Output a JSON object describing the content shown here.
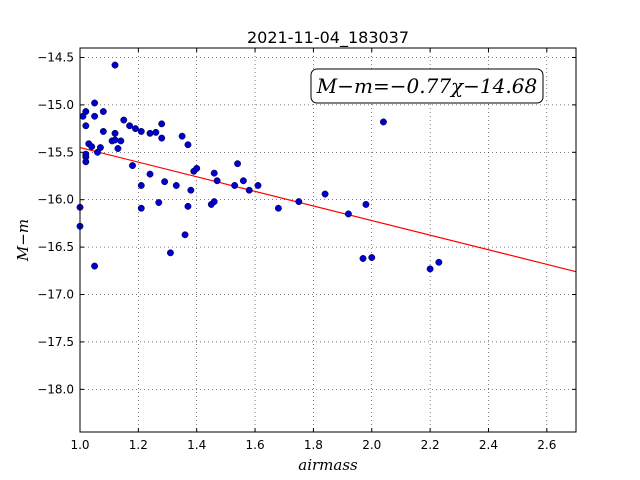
{
  "chart_data": {
    "type": "scatter",
    "title": "2021-11-04_183037",
    "xlabel": "airmass",
    "ylabel": "M−m",
    "xlim": [
      1.0,
      2.7
    ],
    "ylim": [
      -14.4,
      -18.45
    ],
    "y_inverted": true,
    "xticks": [
      1.0,
      1.2,
      1.4,
      1.6,
      1.8,
      2.0,
      2.2,
      2.4,
      2.6
    ],
    "yticks": [
      -14.5,
      -15.0,
      -15.5,
      -16.0,
      -16.5,
      -17.0,
      -17.5,
      -18.0
    ],
    "grid": true,
    "annotation": "M−m=−0.77χ−14.68",
    "fit": {
      "slope": -0.77,
      "intercept": -14.68,
      "color": "#ff0000"
    },
    "point_color": "#0000cc",
    "points": [
      [
        1.0,
        -16.08
      ],
      [
        1.0,
        -16.28
      ],
      [
        1.01,
        -15.12
      ],
      [
        1.02,
        -15.07
      ],
      [
        1.02,
        -15.22
      ],
      [
        1.02,
        -15.52
      ],
      [
        1.02,
        -15.55
      ],
      [
        1.02,
        -15.6
      ],
      [
        1.03,
        -15.41
      ],
      [
        1.04,
        -15.44
      ],
      [
        1.05,
        -14.98
      ],
      [
        1.05,
        -15.12
      ],
      [
        1.05,
        -16.7
      ],
      [
        1.06,
        -15.5
      ],
      [
        1.07,
        -15.45
      ],
      [
        1.08,
        -15.07
      ],
      [
        1.08,
        -15.28
      ],
      [
        1.11,
        -15.38
      ],
      [
        1.12,
        -14.58
      ],
      [
        1.12,
        -15.3
      ],
      [
        1.12,
        -15.37
      ],
      [
        1.13,
        -15.46
      ],
      [
        1.14,
        -15.38
      ],
      [
        1.15,
        -15.16
      ],
      [
        1.17,
        -15.22
      ],
      [
        1.18,
        -15.64
      ],
      [
        1.19,
        -15.25
      ],
      [
        1.21,
        -15.28
      ],
      [
        1.21,
        -15.85
      ],
      [
        1.21,
        -16.09
      ],
      [
        1.24,
        -15.3
      ],
      [
        1.24,
        -15.73
      ],
      [
        1.26,
        -15.29
      ],
      [
        1.27,
        -16.03
      ],
      [
        1.28,
        -15.2
      ],
      [
        1.28,
        -15.35
      ],
      [
        1.29,
        -15.81
      ],
      [
        1.31,
        -16.56
      ],
      [
        1.33,
        -15.85
      ],
      [
        1.35,
        -15.33
      ],
      [
        1.36,
        -16.37
      ],
      [
        1.37,
        -15.42
      ],
      [
        1.37,
        -16.07
      ],
      [
        1.38,
        -15.9
      ],
      [
        1.39,
        -15.7
      ],
      [
        1.4,
        -15.67
      ],
      [
        1.45,
        -16.05
      ],
      [
        1.46,
        -15.72
      ],
      [
        1.46,
        -16.02
      ],
      [
        1.47,
        -15.8
      ],
      [
        1.53,
        -15.85
      ],
      [
        1.54,
        -15.62
      ],
      [
        1.56,
        -15.8
      ],
      [
        1.58,
        -15.9
      ],
      [
        1.61,
        -15.85
      ],
      [
        1.68,
        -16.09
      ],
      [
        1.75,
        -16.02
      ],
      [
        1.84,
        -15.94
      ],
      [
        1.92,
        -16.15
      ],
      [
        1.97,
        -16.62
      ],
      [
        1.98,
        -16.05
      ],
      [
        2.0,
        -16.61
      ],
      [
        2.04,
        -15.18
      ],
      [
        2.2,
        -16.73
      ],
      [
        2.23,
        -16.66
      ]
    ]
  }
}
